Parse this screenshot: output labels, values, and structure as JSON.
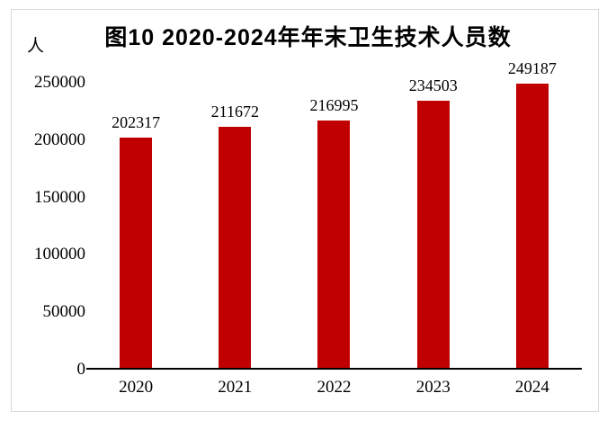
{
  "chart_data": {
    "type": "bar",
    "title": "图10 2020-2024年年末卫生技术人员数",
    "unit_label": "人",
    "categories": [
      "2020",
      "2021",
      "2022",
      "2023",
      "2024"
    ],
    "values": [
      202317,
      211672,
      216995,
      234503,
      249187
    ],
    "data_labels": [
      "202317",
      "211672",
      "216995",
      "234503",
      "249187"
    ],
    "xlabel": "",
    "ylabel": "人",
    "ylim": [
      0,
      250000
    ],
    "yticks": [
      0,
      50000,
      100000,
      150000,
      200000,
      250000
    ],
    "ytick_labels": [
      "0",
      "50000",
      "100000",
      "150000",
      "200000",
      "250000"
    ],
    "grid": false,
    "legend": "none",
    "bar_color": "#C00000",
    "axis_color": "#000000",
    "text_color": "#000000",
    "frame_border_color": "#D9D9D9",
    "background_color": "#FFFFFF"
  }
}
